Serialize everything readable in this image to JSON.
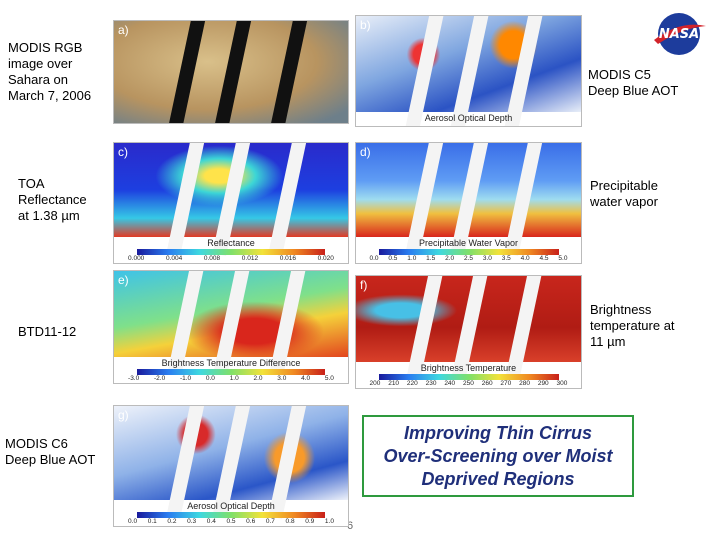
{
  "labels": [
    "MODIS RGB\nimage over\nSahara on\nMarch 7, 2006",
    "MODIS C5\nDeep Blue AOT",
    "TOA\nReflectance\nat 1.38 µm",
    "Precipitable\nwater vapor",
    "BTD11-12",
    "Brightness\ntemperature at\n11 µm",
    "MODIS C6\nDeep Blue AOT"
  ],
  "panels": [
    {
      "letter": "a)"
    },
    {
      "letter": "b)",
      "colorbar_title": "Aerosol Optical Depth"
    },
    {
      "letter": "c)",
      "colorbar_title": "Reflectance",
      "colorbar_ticks": [
        "0.000",
        "0.004",
        "0.008",
        "0.012",
        "0.016",
        "0.020"
      ]
    },
    {
      "letter": "d)",
      "colorbar_title": "Precipitable Water Vapor",
      "colorbar_ticks": [
        "0.0",
        "0.5",
        "1.0",
        "1.5",
        "2.0",
        "2.5",
        "3.0",
        "3.5",
        "4.0",
        "4.5",
        "5.0"
      ]
    },
    {
      "letter": "e)",
      "colorbar_title": "Brightness Temperature Difference",
      "colorbar_ticks": [
        "-3.0",
        "-2.0",
        "-1.0",
        "0.0",
        "1.0",
        "2.0",
        "3.0",
        "4.0",
        "5.0"
      ]
    },
    {
      "letter": "f)",
      "colorbar_title": "Brightness Temperature",
      "colorbar_ticks": [
        "200",
        "210",
        "220",
        "230",
        "240",
        "250",
        "260",
        "270",
        "280",
        "290",
        "300"
      ]
    },
    {
      "letter": "g)",
      "colorbar_title": "Aerosol Optical Depth",
      "colorbar_ticks": [
        "0.0",
        "0.1",
        "0.2",
        "0.3",
        "0.4",
        "0.5",
        "0.6",
        "0.7",
        "0.8",
        "0.9",
        "1.0"
      ]
    }
  ],
  "highlight": "Improving Thin Cirrus\nOver-Screening over Moist\nDeprived Regions",
  "page_number": "6"
}
